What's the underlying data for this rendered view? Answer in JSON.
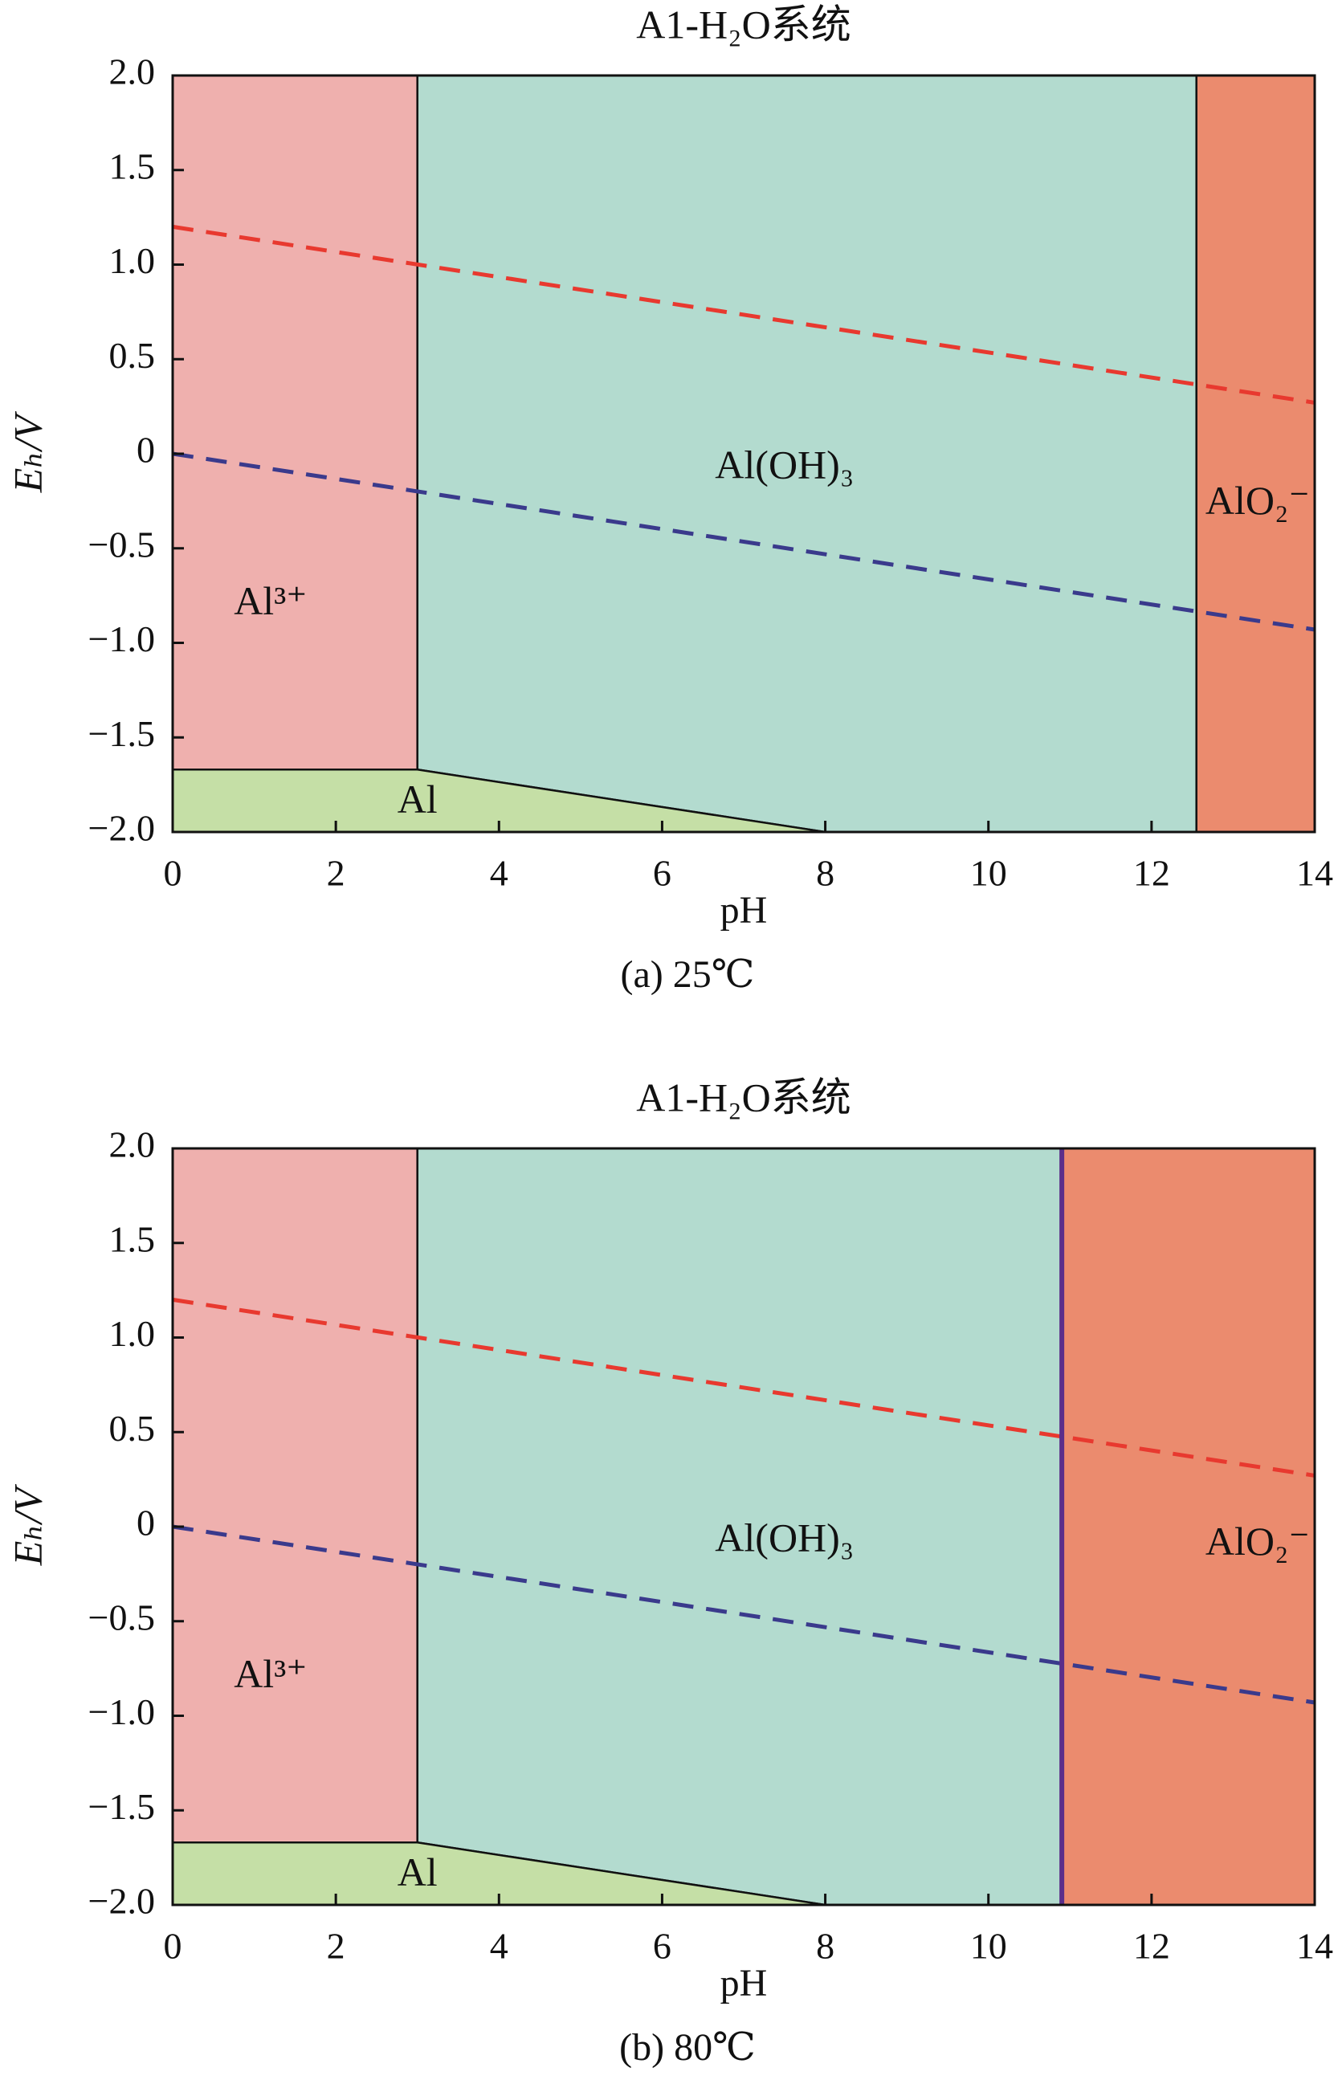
{
  "chart_data": [
    {
      "type": "pourbaix",
      "title": "A1-H₂O系统",
      "caption": "(a) 25℃",
      "xlabel": "pH",
      "ylabel": "Eₕ/V",
      "xlim": [
        0,
        14
      ],
      "ylim": [
        -2,
        2
      ],
      "xticks": [
        0,
        2,
        4,
        6,
        8,
        10,
        12,
        14
      ],
      "yticks": [
        {
          "value": 2,
          "label": "2.0"
        },
        {
          "value": 1.5,
          "label": "1.5"
        },
        {
          "value": 1,
          "label": "1.0"
        },
        {
          "value": 0.5,
          "label": "0.5"
        },
        0,
        {
          "value": -0.5,
          "label": "−0.5"
        },
        {
          "value": -1,
          "label": "−1.0"
        },
        {
          "value": -1.5,
          "label": "−1.5"
        },
        {
          "value": -2,
          "label": "−2.0"
        }
      ],
      "regions": [
        {
          "name": "Al³⁺",
          "color": "#efb0ae",
          "points": [
            [
              0,
              2
            ],
            [
              3,
              2
            ],
            [
              3,
              -1.67
            ],
            [
              0,
              -1.67
            ]
          ]
        },
        {
          "name": "Al(OH)₃",
          "color": "#b3dbcf",
          "points": [
            [
              3,
              2
            ],
            [
              12.55,
              2
            ],
            [
              12.55,
              -2
            ],
            [
              8,
              -2
            ],
            [
              3,
              -1.67
            ]
          ]
        },
        {
          "name": "AlO₂⁻",
          "color": "#eb8b6e",
          "points": [
            [
              12.55,
              2
            ],
            [
              14,
              2
            ],
            [
              14,
              -2
            ],
            [
              12.55,
              -2
            ]
          ]
        },
        {
          "name": "Al",
          "color": "#c5dfa6",
          "points": [
            [
              0,
              -1.67
            ],
            [
              3,
              -1.67
            ],
            [
              8,
              -2
            ],
            [
              0,
              -2
            ]
          ]
        }
      ],
      "series": [
        {
          "color": "#e8392f",
          "dashed": true,
          "x": [
            0,
            14
          ],
          "values": [
            1.2,
            0.27
          ]
        },
        {
          "color": "#3a3a8c",
          "dashed": true,
          "x": [
            0,
            14
          ],
          "values": [
            0,
            -0.93
          ]
        }
      ]
    },
    {
      "type": "pourbaix",
      "title": "A1-H₂O系统",
      "caption": "(b) 80℃",
      "xlabel": "pH",
      "ylabel": "Eₕ/V",
      "xlim": [
        0,
        14
      ],
      "ylim": [
        -2,
        2
      ],
      "xticks": [
        0,
        2,
        4,
        6,
        8,
        10,
        12,
        14
      ],
      "yticks": [
        {
          "value": 2,
          "label": "2.0"
        },
        {
          "value": 1.5,
          "label": "1.5"
        },
        {
          "value": 1,
          "label": "1.0"
        },
        {
          "value": 0.5,
          "label": "0.5"
        },
        0,
        {
          "value": -0.5,
          "label": "−0.5"
        },
        {
          "value": -1,
          "label": "−1.0"
        },
        {
          "value": -1.5,
          "label": "−1.5"
        },
        {
          "value": -2,
          "label": "−2.0"
        }
      ],
      "regions": [
        {
          "name": "Al³⁺",
          "color": "#efb0ae",
          "points": [
            [
              0,
              2
            ],
            [
              3,
              2
            ],
            [
              3,
              -1.67
            ],
            [
              0,
              -1.67
            ]
          ]
        },
        {
          "name": "Al(OH)₃",
          "color": "#b3dbcf",
          "points": [
            [
              3,
              2
            ],
            [
              10.9,
              2
            ],
            [
              10.9,
              -2
            ],
            [
              8,
              -2
            ],
            [
              3,
              -1.67
            ]
          ]
        },
        {
          "name": "AlO₂⁻",
          "color": "#eb8b6e",
          "points": [
            [
              10.9,
              2
            ],
            [
              14,
              2
            ],
            [
              14,
              -2
            ],
            [
              10.9,
              -2
            ]
          ]
        },
        {
          "name": "Al",
          "color": "#c5dfa6",
          "points": [
            [
              0,
              -1.67
            ],
            [
              3,
              -1.67
            ],
            [
              8,
              -2
            ],
            [
              0,
              -2
            ]
          ]
        }
      ],
      "series": [
        {
          "color": "#e8392f",
          "dashed": true,
          "x": [
            0,
            14
          ],
          "values": [
            1.2,
            0.27
          ]
        },
        {
          "color": "#3a3a8c",
          "dashed": true,
          "x": [
            0,
            14
          ],
          "values": [
            0,
            -0.93
          ]
        },
        {
          "color": "#5b2e8a",
          "dashed": false,
          "x": [
            10.9,
            10.9
          ],
          "values": [
            -2,
            2
          ]
        }
      ]
    }
  ]
}
